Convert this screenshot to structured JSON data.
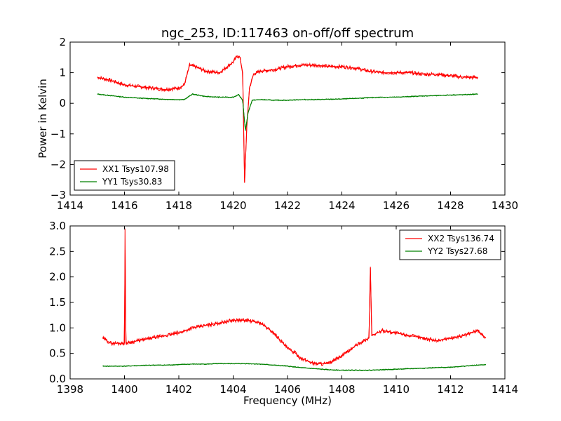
{
  "chart_data": [
    {
      "type": "line",
      "title": "ngc_253, ID:117463 on-off/off spectrum",
      "xlabel": "",
      "ylabel": "Power in Kelvin",
      "xlim": [
        1414,
        1430
      ],
      "ylim": [
        -3,
        2
      ],
      "xticks": [
        "1414",
        "1416",
        "1418",
        "1420",
        "1422",
        "1424",
        "1426",
        "1428",
        "1430"
      ],
      "yticks": [
        "−3",
        "−2",
        "−1",
        "0",
        "1",
        "2"
      ],
      "grid": false,
      "legend_position": "lower-left",
      "series": [
        {
          "name": "XX1 Tsys107.98",
          "color": "#ff0000",
          "x": [
            1415.0,
            1415.5,
            1416.0,
            1416.5,
            1417.0,
            1417.5,
            1418.0,
            1418.2,
            1418.4,
            1418.6,
            1419.0,
            1419.5,
            1420.0,
            1420.15,
            1420.25,
            1420.35,
            1420.42,
            1420.5,
            1420.6,
            1420.75,
            1421.0,
            1421.5,
            1422.0,
            1422.5,
            1423.0,
            1423.5,
            1424.0,
            1424.5,
            1425.0,
            1425.5,
            1426.0,
            1426.5,
            1427.0,
            1427.5,
            1428.0,
            1428.5,
            1429.0
          ],
          "y": [
            0.85,
            0.75,
            0.6,
            0.55,
            0.5,
            0.45,
            0.5,
            0.6,
            1.25,
            1.2,
            1.05,
            1.0,
            1.35,
            1.55,
            1.5,
            1.0,
            -2.6,
            -0.8,
            0.5,
            0.95,
            1.05,
            1.1,
            1.2,
            1.25,
            1.25,
            1.2,
            1.2,
            1.15,
            1.05,
            1.0,
            1.0,
            1.0,
            0.95,
            0.95,
            0.9,
            0.85,
            0.85
          ]
        },
        {
          "name": "YY1 Tsys30.83",
          "color": "#008000",
          "x": [
            1415.0,
            1415.5,
            1416.0,
            1416.5,
            1417.0,
            1417.5,
            1418.0,
            1418.2,
            1418.5,
            1419.0,
            1419.5,
            1420.0,
            1420.2,
            1420.35,
            1420.45,
            1420.55,
            1420.7,
            1421.0,
            1421.5,
            1422.0,
            1422.5,
            1423.0,
            1423.5,
            1424.0,
            1424.5,
            1425.0,
            1425.5,
            1426.0,
            1426.5,
            1427.0,
            1427.5,
            1428.0,
            1428.5,
            1429.0
          ],
          "y": [
            0.3,
            0.25,
            0.2,
            0.17,
            0.15,
            0.13,
            0.12,
            0.12,
            0.3,
            0.22,
            0.2,
            0.2,
            0.28,
            0.1,
            -0.9,
            -0.3,
            0.1,
            0.12,
            0.1,
            0.1,
            0.12,
            0.12,
            0.13,
            0.14,
            0.16,
            0.18,
            0.2,
            0.2,
            0.22,
            0.24,
            0.25,
            0.27,
            0.28,
            0.3
          ]
        }
      ]
    },
    {
      "type": "line",
      "title": "",
      "xlabel": "Frequency (MHz)",
      "ylabel": "",
      "xlim": [
        1398,
        1414
      ],
      "ylim": [
        0,
        3
      ],
      "xticks": [
        "1398",
        "1400",
        "1402",
        "1404",
        "1406",
        "1408",
        "1410",
        "1412",
        "1414"
      ],
      "yticks": [
        "0.0",
        "0.5",
        "1.0",
        "1.5",
        "2.0",
        "2.5",
        "3.0"
      ],
      "grid": false,
      "legend_position": "upper-right",
      "series": [
        {
          "name": "XX2 Tsys136.74",
          "color": "#ff0000",
          "x": [
            1399.2,
            1399.5,
            1399.8,
            1400.0,
            1400.02,
            1400.05,
            1400.5,
            1401.0,
            1401.5,
            1402.0,
            1402.5,
            1403.0,
            1403.5,
            1404.0,
            1404.5,
            1405.0,
            1405.5,
            1406.0,
            1406.3,
            1406.5,
            1407.0,
            1407.5,
            1408.0,
            1408.5,
            1409.0,
            1409.05,
            1409.1,
            1409.5,
            1410.0,
            1410.5,
            1411.0,
            1411.5,
            1412.0,
            1412.5,
            1413.0,
            1413.3
          ],
          "y": [
            0.8,
            0.7,
            0.7,
            0.7,
            2.95,
            0.7,
            0.75,
            0.8,
            0.85,
            0.9,
            1.0,
            1.05,
            1.1,
            1.15,
            1.15,
            1.1,
            0.9,
            0.6,
            0.5,
            0.4,
            0.3,
            0.3,
            0.45,
            0.65,
            0.8,
            2.2,
            0.85,
            0.95,
            0.9,
            0.85,
            0.8,
            0.75,
            0.8,
            0.85,
            0.95,
            0.8
          ]
        },
        {
          "name": "YY2 Tsys27.68",
          "color": "#008000",
          "x": [
            1399.2,
            1400.0,
            1400.5,
            1401.0,
            1401.5,
            1402.0,
            1402.5,
            1403.0,
            1403.5,
            1404.0,
            1404.5,
            1405.0,
            1405.5,
            1406.0,
            1406.5,
            1407.0,
            1407.5,
            1408.0,
            1408.5,
            1409.0,
            1409.5,
            1410.0,
            1410.5,
            1411.0,
            1411.5,
            1412.0,
            1412.5,
            1413.0,
            1413.3
          ],
          "y": [
            0.25,
            0.25,
            0.26,
            0.27,
            0.27,
            0.28,
            0.29,
            0.29,
            0.3,
            0.3,
            0.3,
            0.29,
            0.27,
            0.25,
            0.22,
            0.2,
            0.18,
            0.17,
            0.17,
            0.17,
            0.18,
            0.19,
            0.2,
            0.21,
            0.22,
            0.23,
            0.25,
            0.27,
            0.28
          ]
        }
      ]
    }
  ]
}
